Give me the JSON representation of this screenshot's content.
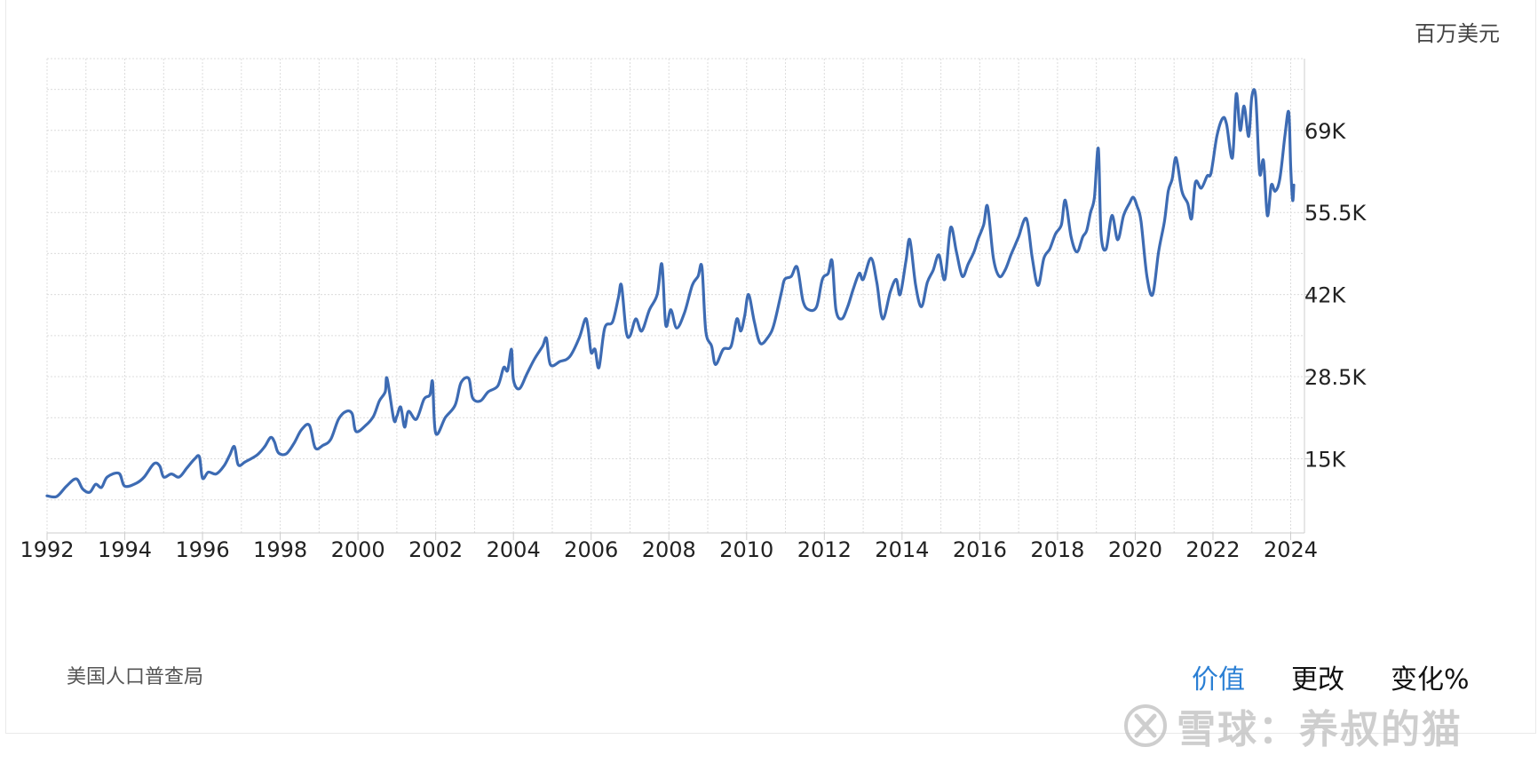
{
  "unit_label": "百万美元",
  "source_label": "美国人口普查局",
  "tabs": [
    {
      "label": "价值",
      "active": true
    },
    {
      "label": "更改",
      "active": false
    },
    {
      "label": "变化%",
      "active": false
    }
  ],
  "watermark": "雪球：养叔的猫",
  "colors": {
    "line": "#3d6bb3",
    "grid": "#dcdcdc",
    "active_tab": "#2a7fd4"
  },
  "chart_data": {
    "type": "line",
    "title": "",
    "xlabel": "",
    "ylabel": "百万美元",
    "x_ticks": [
      "1992",
      "1994",
      "1996",
      "1998",
      "2000",
      "2002",
      "2004",
      "2006",
      "2008",
      "2010",
      "2012",
      "2014",
      "2016",
      "2018",
      "2020",
      "2022",
      "2024"
    ],
    "y_ticks": [
      "15K",
      "28.5K",
      "42K",
      "55.5K",
      "69K"
    ],
    "y_tick_values": [
      15000,
      28500,
      42000,
      55500,
      69000
    ],
    "xlim": [
      1992.0,
      2024.08
    ],
    "ylim": [
      2800,
      80800
    ],
    "grid": true,
    "series": [
      {
        "points": [
          [
            1992.0,
            8900
          ],
          [
            1992.25,
            8800
          ],
          [
            1992.5,
            10500
          ],
          [
            1992.75,
            11700
          ],
          [
            1992.92,
            10000
          ],
          [
            1993.1,
            9500
          ],
          [
            1993.25,
            10800
          ],
          [
            1993.4,
            10300
          ],
          [
            1993.55,
            12000
          ],
          [
            1993.85,
            12600
          ],
          [
            1994.0,
            10500
          ],
          [
            1994.3,
            11000
          ],
          [
            1994.5,
            12000
          ],
          [
            1994.75,
            14200
          ],
          [
            1994.9,
            13800
          ],
          [
            1995.0,
            12000
          ],
          [
            1995.2,
            12500
          ],
          [
            1995.4,
            12000
          ],
          [
            1995.6,
            13500
          ],
          [
            1995.8,
            15000
          ],
          [
            1995.92,
            15300
          ],
          [
            1996.0,
            11800
          ],
          [
            1996.15,
            12800
          ],
          [
            1996.35,
            12500
          ],
          [
            1996.55,
            13800
          ],
          [
            1996.7,
            15600
          ],
          [
            1996.82,
            17000
          ],
          [
            1996.92,
            14000
          ],
          [
            1997.1,
            14500
          ],
          [
            1997.4,
            15600
          ],
          [
            1997.6,
            17000
          ],
          [
            1997.75,
            18500
          ],
          [
            1997.85,
            17800
          ],
          [
            1997.95,
            16000
          ],
          [
            1998.15,
            15800
          ],
          [
            1998.35,
            17500
          ],
          [
            1998.55,
            19800
          ],
          [
            1998.75,
            20500
          ],
          [
            1998.9,
            16800
          ],
          [
            1999.1,
            17200
          ],
          [
            1999.3,
            18200
          ],
          [
            1999.5,
            21500
          ],
          [
            1999.7,
            22800
          ],
          [
            1999.85,
            22400
          ],
          [
            1999.95,
            19500
          ],
          [
            2000.2,
            20500
          ],
          [
            2000.4,
            22000
          ],
          [
            2000.55,
            24500
          ],
          [
            2000.7,
            26000
          ],
          [
            2000.75,
            28200
          ],
          [
            2000.92,
            21500
          ],
          [
            2001.0,
            22000
          ],
          [
            2001.1,
            23500
          ],
          [
            2001.2,
            20200
          ],
          [
            2001.3,
            22800
          ],
          [
            2001.5,
            21500
          ],
          [
            2001.7,
            24800
          ],
          [
            2001.85,
            25500
          ],
          [
            2001.92,
            27600
          ],
          [
            2002.0,
            19200
          ],
          [
            2002.25,
            21800
          ],
          [
            2002.5,
            23800
          ],
          [
            2002.65,
            27500
          ],
          [
            2002.85,
            28200
          ],
          [
            2002.95,
            25000
          ],
          [
            2003.15,
            24500
          ],
          [
            2003.35,
            26000
          ],
          [
            2003.6,
            27000
          ],
          [
            2003.75,
            30000
          ],
          [
            2003.85,
            29500
          ],
          [
            2003.95,
            33000
          ],
          [
            2004.0,
            28000
          ],
          [
            2004.15,
            26500
          ],
          [
            2004.35,
            29000
          ],
          [
            2004.55,
            31500
          ],
          [
            2004.75,
            33500
          ],
          [
            2004.85,
            34800
          ],
          [
            2004.95,
            30500
          ],
          [
            2005.2,
            31000
          ],
          [
            2005.45,
            31800
          ],
          [
            2005.7,
            35000
          ],
          [
            2005.85,
            38000
          ],
          [
            2005.92,
            36500
          ],
          [
            2006.0,
            32500
          ],
          [
            2006.1,
            33000
          ],
          [
            2006.2,
            30000
          ],
          [
            2006.35,
            36500
          ],
          [
            2006.55,
            37500
          ],
          [
            2006.7,
            41500
          ],
          [
            2006.78,
            43500
          ],
          [
            2006.9,
            36000
          ],
          [
            2007.0,
            35200
          ],
          [
            2007.15,
            38000
          ],
          [
            2007.3,
            36000
          ],
          [
            2007.5,
            39500
          ],
          [
            2007.7,
            42000
          ],
          [
            2007.82,
            47000
          ],
          [
            2007.92,
            37000
          ],
          [
            2008.05,
            39500
          ],
          [
            2008.2,
            36500
          ],
          [
            2008.4,
            39000
          ],
          [
            2008.6,
            43500
          ],
          [
            2008.75,
            45000
          ],
          [
            2008.85,
            46500
          ],
          [
            2008.95,
            36000
          ],
          [
            2009.1,
            33500
          ],
          [
            2009.2,
            30500
          ],
          [
            2009.4,
            33000
          ],
          [
            2009.6,
            33500
          ],
          [
            2009.75,
            38000
          ],
          [
            2009.85,
            36000
          ],
          [
            2009.95,
            38500
          ],
          [
            2010.05,
            42000
          ],
          [
            2010.2,
            37500
          ],
          [
            2010.35,
            34000
          ],
          [
            2010.55,
            35000
          ],
          [
            2010.7,
            37000
          ],
          [
            2010.9,
            42500
          ],
          [
            2010.98,
            44500
          ],
          [
            2011.15,
            45000
          ],
          [
            2011.3,
            46500
          ],
          [
            2011.45,
            41000
          ],
          [
            2011.6,
            39500
          ],
          [
            2011.8,
            40000
          ],
          [
            2011.95,
            44500
          ],
          [
            2012.1,
            45500
          ],
          [
            2012.2,
            47500
          ],
          [
            2012.3,
            39500
          ],
          [
            2012.45,
            38000
          ],
          [
            2012.6,
            40000
          ],
          [
            2012.75,
            43000
          ],
          [
            2012.9,
            45500
          ],
          [
            2013.0,
            44500
          ],
          [
            2013.2,
            48000
          ],
          [
            2013.35,
            44000
          ],
          [
            2013.5,
            38000
          ],
          [
            2013.7,
            42500
          ],
          [
            2013.85,
            44500
          ],
          [
            2013.95,
            42000
          ],
          [
            2014.1,
            47500
          ],
          [
            2014.2,
            51000
          ],
          [
            2014.35,
            43500
          ],
          [
            2014.5,
            40000
          ],
          [
            2014.65,
            44000
          ],
          [
            2014.8,
            46000
          ],
          [
            2014.95,
            48500
          ],
          [
            2015.1,
            44500
          ],
          [
            2015.25,
            53000
          ],
          [
            2015.4,
            49000
          ],
          [
            2015.55,
            45000
          ],
          [
            2015.7,
            47000
          ],
          [
            2015.85,
            49000
          ],
          [
            2015.95,
            51000
          ],
          [
            2016.1,
            53500
          ],
          [
            2016.2,
            56500
          ],
          [
            2016.35,
            48000
          ],
          [
            2016.5,
            45000
          ],
          [
            2016.65,
            46000
          ],
          [
            2016.8,
            48500
          ],
          [
            2016.9,
            50000
          ],
          [
            2017.0,
            51500
          ],
          [
            2017.2,
            54500
          ],
          [
            2017.35,
            48000
          ],
          [
            2017.5,
            43500
          ],
          [
            2017.65,
            48000
          ],
          [
            2017.8,
            49500
          ],
          [
            2017.95,
            52000
          ],
          [
            2018.1,
            53500
          ],
          [
            2018.2,
            57500
          ],
          [
            2018.35,
            51500
          ],
          [
            2018.5,
            49000
          ],
          [
            2018.65,
            51500
          ],
          [
            2018.75,
            52500
          ],
          [
            2018.85,
            55500
          ],
          [
            2018.95,
            58000
          ],
          [
            2019.05,
            66000
          ],
          [
            2019.12,
            52000
          ],
          [
            2019.25,
            49500
          ],
          [
            2019.4,
            55000
          ],
          [
            2019.55,
            51000
          ],
          [
            2019.7,
            55000
          ],
          [
            2019.85,
            57000
          ],
          [
            2019.95,
            58000
          ],
          [
            2020.05,
            56500
          ],
          [
            2020.15,
            54000
          ],
          [
            2020.3,
            45000
          ],
          [
            2020.45,
            42000
          ],
          [
            2020.6,
            49000
          ],
          [
            2020.75,
            54000
          ],
          [
            2020.85,
            59000
          ],
          [
            2020.95,
            61000
          ],
          [
            2021.05,
            64500
          ],
          [
            2021.2,
            59000
          ],
          [
            2021.35,
            57000
          ],
          [
            2021.45,
            54500
          ],
          [
            2021.55,
            60500
          ],
          [
            2021.7,
            59500
          ],
          [
            2021.85,
            61500
          ],
          [
            2021.95,
            62000
          ],
          [
            2022.1,
            68000
          ],
          [
            2022.25,
            71000
          ],
          [
            2022.35,
            70000
          ],
          [
            2022.5,
            64500
          ],
          [
            2022.6,
            75000
          ],
          [
            2022.7,
            69000
          ],
          [
            2022.8,
            73000
          ],
          [
            2022.92,
            68000
          ],
          [
            2023.0,
            74500
          ],
          [
            2023.1,
            74500
          ],
          [
            2023.2,
            62000
          ],
          [
            2023.3,
            64000
          ],
          [
            2023.4,
            55000
          ],
          [
            2023.5,
            60000
          ],
          [
            2023.6,
            59000
          ],
          [
            2023.72,
            61000
          ],
          [
            2023.85,
            68000
          ],
          [
            2023.95,
            72000
          ],
          [
            2024.0,
            63000
          ],
          [
            2024.05,
            57500
          ],
          [
            2024.08,
            60000
          ]
        ]
      }
    ]
  }
}
